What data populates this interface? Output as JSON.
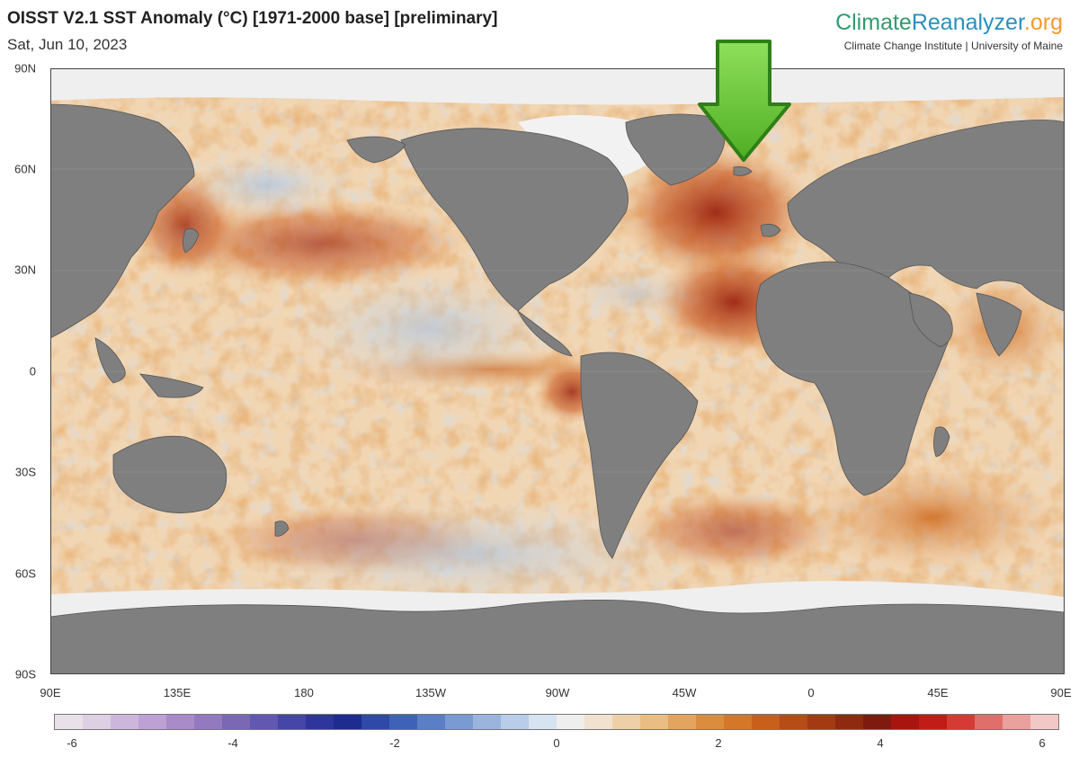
{
  "header": {
    "title": "OISST V2.1 SST Anomaly (°C) [1971-2000 base] [preliminary]",
    "date": "Sat, Jun 10, 2023"
  },
  "brand": {
    "name_part1": "Climate",
    "name_part2": "Reanalyzer",
    "name_part3": ".org",
    "subtitle": "Climate Change Institute | University of Maine"
  },
  "map": {
    "lat_labels": [
      "90N",
      "60N",
      "30N",
      "0",
      "30S",
      "60S",
      "90S"
    ],
    "lon_labels": [
      "90E",
      "135E",
      "180",
      "135W",
      "90W",
      "45W",
      "0",
      "45E",
      "90E"
    ],
    "land_color": "#7f7f7f",
    "ice_color": "#f0f0f0",
    "ocean_base_color": "#f3dcc0",
    "arrow_color": "#6cc63a",
    "arrow_target": "North Atlantic"
  },
  "colorbar": {
    "tick_labels": [
      "-6",
      "-4",
      "-2",
      "0",
      "2",
      "4",
      "6"
    ],
    "range": [
      -6,
      6
    ],
    "colors": [
      "#e9e1ea",
      "#ddd0e3",
      "#cdb6dc",
      "#bda1d4",
      "#a98bc9",
      "#9379bf",
      "#7a68b5",
      "#6258b1",
      "#4646a8",
      "#2e359c",
      "#1d2c8e",
      "#2e49a8",
      "#3d62b8",
      "#5a7fc6",
      "#7a9ad3",
      "#9ab4de",
      "#b9cde9",
      "#d6e3f1",
      "#eeeeee",
      "#f0e2cf",
      "#eed0a8",
      "#eabd83",
      "#e3a45e",
      "#dc8c3d",
      "#d47728",
      "#c8601c",
      "#b64c16",
      "#a33a12",
      "#8f2a10",
      "#7f1a0e",
      "#a8150e",
      "#c11c16",
      "#d63a34",
      "#e06e6a",
      "#eaa09c",
      "#f2c8c6"
    ]
  }
}
